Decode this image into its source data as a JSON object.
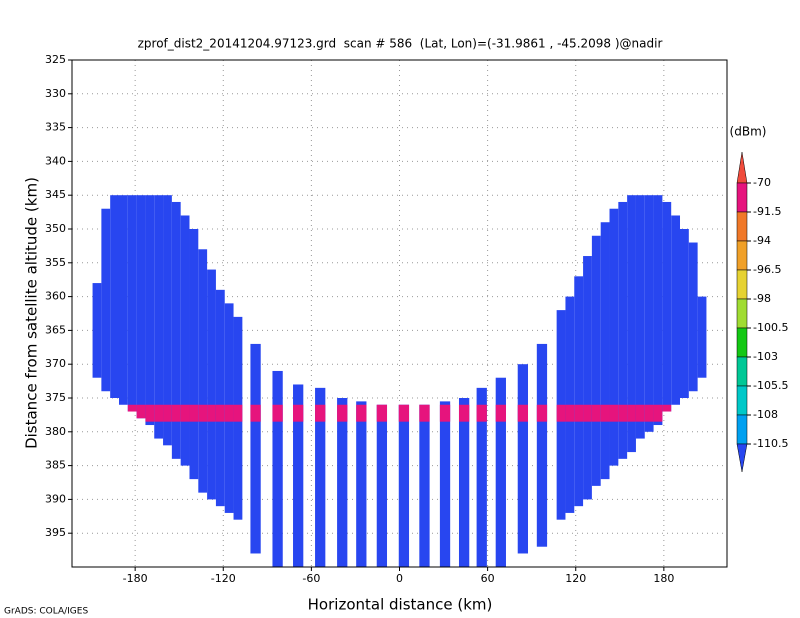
{
  "chart_data": {
    "type": "profile",
    "title": "zprof_dist2_20141204.97123.grd  scan # 586  (Lat, Lon)=(-31.9861 , -45.2098 )@nadir",
    "xlabel": "Horizontal distance (km)",
    "ylabel": "Distance from satellite altitude (km)",
    "colorbar_label": "(dBm)",
    "credit": "GrADS: COLA/IGES",
    "xlim": [
      -223,
      223
    ],
    "ylim": [
      325,
      400
    ],
    "y_reversed": true,
    "xticks": [
      -180,
      -120,
      -60,
      0,
      60,
      120,
      180
    ],
    "yticks": [
      325,
      330,
      335,
      340,
      345,
      350,
      355,
      360,
      365,
      370,
      375,
      380,
      385,
      390,
      395
    ],
    "grid": true,
    "levels": [
      -70,
      -91.5,
      -94,
      -96.5,
      -98,
      -100.5,
      -103,
      -105.5,
      -108,
      -110.5
    ],
    "colors": [
      "#f04b3c",
      "#e6147d",
      "#f07828",
      "#f0a028",
      "#e6d232",
      "#a0dc32",
      "#14c814",
      "#00c896",
      "#00c8c8",
      "#00a0f0",
      "#2846f0"
    ],
    "background_value": -112,
    "surface": {
      "top": 376,
      "bottom": 378.5,
      "value": -90
    },
    "columns": [
      {
        "x": -206,
        "top": 358,
        "bottom": 372
      },
      {
        "x": -200,
        "top": 347,
        "bottom": 374
      },
      {
        "x": -194,
        "top": 345,
        "bottom": 375
      },
      {
        "x": -188,
        "top": 345,
        "bottom": 376
      },
      {
        "x": -182,
        "top": 345,
        "bottom": 377
      },
      {
        "x": -176,
        "top": 345,
        "bottom": 378
      },
      {
        "x": -170,
        "top": 345,
        "bottom": 379
      },
      {
        "x": -164,
        "top": 345,
        "bottom": 381
      },
      {
        "x": -158,
        "top": 345,
        "bottom": 382
      },
      {
        "x": -152,
        "top": 346,
        "bottom": 384
      },
      {
        "x": -146,
        "top": 348,
        "bottom": 385
      },
      {
        "x": -140,
        "top": 350,
        "bottom": 387
      },
      {
        "x": -134,
        "top": 353,
        "bottom": 389
      },
      {
        "x": -128,
        "top": 356,
        "bottom": 390
      },
      {
        "x": -122,
        "top": 359,
        "bottom": 391
      },
      {
        "x": -116,
        "top": 361,
        "bottom": 392
      },
      {
        "x": -110,
        "top": 363,
        "bottom": 393
      },
      {
        "x": -98,
        "top": 367,
        "bottom": 398
      },
      {
        "x": -83,
        "top": 371,
        "bottom": 400
      },
      {
        "x": -69,
        "top": 373,
        "bottom": 400
      },
      {
        "x": -54,
        "top": 373.5,
        "bottom": 400
      },
      {
        "x": -39,
        "top": 375,
        "bottom": 400
      },
      {
        "x": -26,
        "top": 375.5,
        "bottom": 400
      },
      {
        "x": -12,
        "top": 376,
        "bottom": 400
      },
      {
        "x": 3,
        "top": 376,
        "bottom": 400
      },
      {
        "x": 17,
        "top": 376,
        "bottom": 400
      },
      {
        "x": 31,
        "top": 375.5,
        "bottom": 400
      },
      {
        "x": 44,
        "top": 375,
        "bottom": 400
      },
      {
        "x": 56,
        "top": 373.5,
        "bottom": 400
      },
      {
        "x": 69,
        "top": 372,
        "bottom": 400
      },
      {
        "x": 84,
        "top": 370,
        "bottom": 398
      },
      {
        "x": 97,
        "top": 367,
        "bottom": 397
      },
      {
        "x": 110,
        "top": 362,
        "bottom": 393
      },
      {
        "x": 116,
        "top": 360,
        "bottom": 392
      },
      {
        "x": 122,
        "top": 357,
        "bottom": 391
      },
      {
        "x": 128,
        "top": 354,
        "bottom": 390
      },
      {
        "x": 134,
        "top": 351,
        "bottom": 388
      },
      {
        "x": 140,
        "top": 349,
        "bottom": 387
      },
      {
        "x": 146,
        "top": 347,
        "bottom": 385
      },
      {
        "x": 152,
        "top": 346,
        "bottom": 384
      },
      {
        "x": 158,
        "top": 345,
        "bottom": 383
      },
      {
        "x": 164,
        "top": 345,
        "bottom": 381
      },
      {
        "x": 170,
        "top": 345,
        "bottom": 380
      },
      {
        "x": 176,
        "top": 345,
        "bottom": 379
      },
      {
        "x": 182,
        "top": 346,
        "bottom": 377
      },
      {
        "x": 188,
        "top": 348,
        "bottom": 376
      },
      {
        "x": 194,
        "top": 350,
        "bottom": 375
      },
      {
        "x": 200,
        "top": 352,
        "bottom": 374
      },
      {
        "x": 206,
        "top": 360,
        "bottom": 372
      }
    ]
  }
}
